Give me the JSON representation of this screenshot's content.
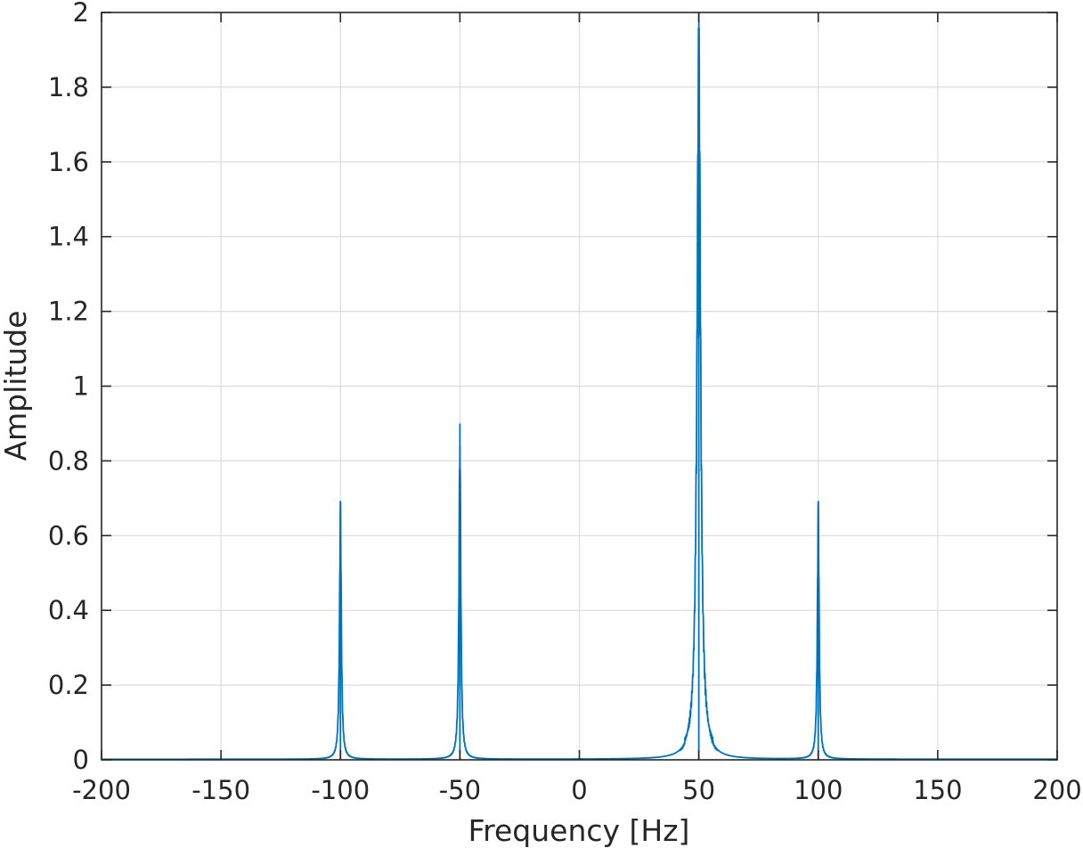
{
  "chart_data": {
    "type": "line",
    "title": "",
    "xlabel": "Frequency [Hz]",
    "ylabel": "Amplitude",
    "xlim": [
      -200,
      200
    ],
    "ylim": [
      0,
      2
    ],
    "grid": true,
    "x_ticks": [
      "-200",
      "-150",
      "-100",
      "-50",
      "0",
      "50",
      "100",
      "150",
      "200"
    ],
    "y_ticks": [
      "0",
      "0.2",
      "0.4",
      "0.6",
      "0.8",
      "1",
      "1.2",
      "1.4",
      "1.6",
      "1.8",
      "2"
    ],
    "series": [
      {
        "color": "#0072BD",
        "peaks": [
          {
            "x": -100,
            "y": 0.69
          },
          {
            "x": -50,
            "y": 0.9
          },
          {
            "x": 50,
            "y": 2.0
          },
          {
            "x": 100,
            "y": 0.69
          }
        ]
      }
    ]
  },
  "colors": {
    "line": "#0072BD",
    "axis": "#262626",
    "grid": "#dcdcdc"
  }
}
